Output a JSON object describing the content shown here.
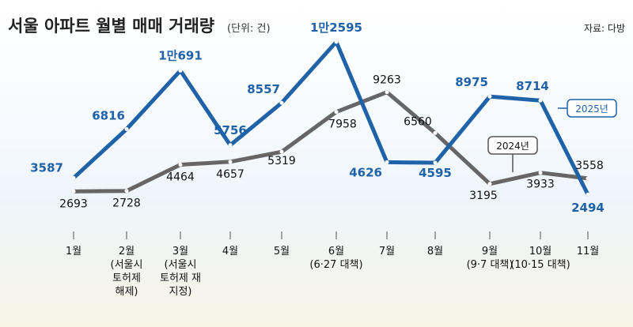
{
  "title": "서울 아파트 월별 매매 거래량",
  "unit_note": "(단위: 건)",
  "source": "자료: 다방",
  "chart_data": {
    "type": "line",
    "title": "서울 아파트 월별 매매 거래량",
    "unit": "(단위: 건)",
    "categories": [
      [
        "1월"
      ],
      [
        "2월",
        "(서울시",
        "토허제",
        "해제)"
      ],
      [
        "3월",
        "(서울시",
        "토허제 재",
        "지정)"
      ],
      [
        "4월"
      ],
      [
        "5월"
      ],
      [
        "6월",
        "(6·27 대책)"
      ],
      [
        "7월"
      ],
      [
        "8월"
      ],
      [
        "9월",
        "(9·7 대책)"
      ],
      [
        "10월",
        "(10·15 대책)"
      ],
      [
        "11월"
      ]
    ],
    "series": [
      {
        "name": "2025년",
        "color": "#1f62a8",
        "values": [
          3587,
          6816,
          10691,
          5756,
          8557,
          12595,
          4626,
          4595,
          8975,
          8714,
          2494
        ],
        "labels": [
          "3587",
          "6816",
          "1만691",
          "5756",
          "8557",
          "1만2595",
          "4626",
          "4595",
          "8975",
          "8714",
          "2494"
        ]
      },
      {
        "name": "2024년",
        "color": "#666666",
        "values": [
          2693,
          2728,
          4464,
          4657,
          5319,
          7958,
          9263,
          6560,
          3195,
          3933,
          3558
        ],
        "labels": [
          "2693",
          "2728",
          "4464",
          "4657",
          "5319",
          "7958",
          "9263",
          "6560",
          "3195",
          "3933",
          "3558"
        ]
      }
    ],
    "legend": "inline labels"
  }
}
